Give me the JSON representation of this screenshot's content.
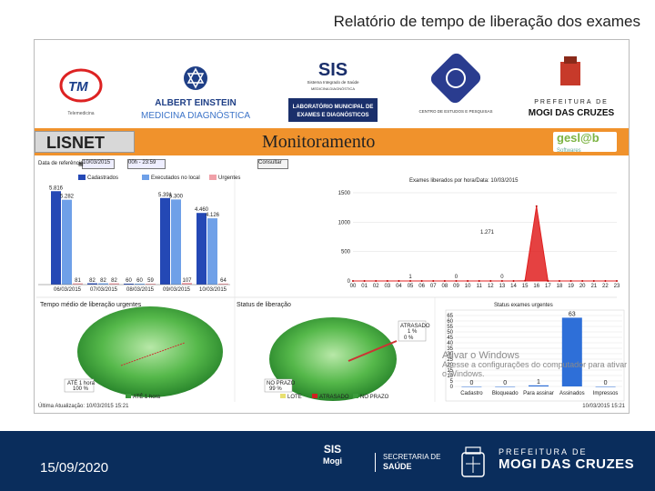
{
  "slide": {
    "title": "Relatório de tempo de liberação dos exames",
    "date": "15/09/2020"
  },
  "logos": {
    "tm_caption": "Telemedicina",
    "einstein_line1": "ALBERT EINSTEIN",
    "einstein_line2": "MEDICINA DIAGNÓSTICA",
    "sis_name": "SIS",
    "sis_sub": "Sistema Integrado de Saúde",
    "sis_sub2": "MEDICINA DIAGNÓSTICA",
    "lab_box_line1": "LABORATÓRIO MUNICIPAL DE",
    "lab_box_line2": "EXAMES E DIAGNÓSTICOS",
    "center_caption": "CENTRO DE ESTUDOS E PESQUISAS",
    "pref_line1": "PREFEITURA DE",
    "pref_line2": "MOGI DAS CRUZES"
  },
  "banner": {
    "app_name": "LISNET",
    "title": "Monitoramento",
    "gesl_brand": "gesl@b",
    "gesl_sub": "Softwares"
  },
  "toolbar": {
    "date_label": "Data de referência",
    "date_value": "10/03/2015",
    "range_value": "00h - 23:59",
    "button": "Consultar"
  },
  "charts": {
    "bar_legend": [
      "Cadastrados",
      "Executados no local",
      "Urgentes"
    ],
    "line_title": "Exames liberados por hora/Data: 10/03/2015",
    "tempo_title": "Tempo médio de liberação urgentes",
    "status_title": "Status de liberação",
    "urgentes_title": "Status exames urgentes",
    "pie1_label": "ATÉ 1 hora\n100 %",
    "pie1_legend": "ATÉ 1 hora",
    "pie2_label": "NO PRAZO\n99 %",
    "pie2_callout": "ATRASADO\n1 %",
    "pie2_callout2": "0 %",
    "pie2_legend": [
      "LOTE",
      "ATRASADO",
      "NO PRAZO"
    ]
  },
  "chart_data": [
    {
      "type": "bar",
      "categories": [
        "06/03/2015",
        "07/03/2015",
        "08/03/2015",
        "09/03/2015",
        "10/03/2015"
      ],
      "series": [
        {
          "name": "Cadastrados",
          "values": [
            5816,
            82,
            60,
            5391,
            4460
          ]
        },
        {
          "name": "Executados no local",
          "values": [
            5282,
            82,
            60,
            5300,
            4126
          ]
        },
        {
          "name": "Urgentes",
          "values": [
            81,
            82,
            59,
            107,
            64
          ]
        }
      ],
      "bar_labels": [
        [
          "5.816",
          "5.282",
          "81"
        ],
        [
          "82",
          "82",
          "82"
        ],
        [
          "60",
          "60",
          "59"
        ],
        [
          "5.391",
          "5.300",
          "107"
        ],
        [
          "4.460",
          "4.126",
          "64"
        ]
      ]
    },
    {
      "type": "area",
      "title": "Exames liberados por hora/Data: 10/03/2015",
      "x": [
        "00",
        "01",
        "02",
        "03",
        "04",
        "05",
        "06",
        "07",
        "08",
        "09",
        "10",
        "11",
        "12",
        "13",
        "14",
        "15",
        "16",
        "17",
        "18",
        "19",
        "20",
        "21",
        "22",
        "23"
      ],
      "y": [
        0,
        0,
        0,
        0,
        0,
        0,
        0,
        0,
        0,
        0,
        0,
        0,
        0,
        0,
        0,
        4,
        1271,
        0,
        0,
        0,
        0,
        0,
        0,
        0
      ],
      "annotations": [
        "1.271",
        "1",
        "0",
        "0"
      ],
      "yticks": [
        "0",
        "500",
        "1000",
        "1500"
      ],
      "color": "#e02020"
    },
    {
      "type": "pie",
      "title": "Tempo médio de liberação urgentes",
      "labels": [
        "ATÉ 1 hora"
      ],
      "values": [
        100
      ]
    },
    {
      "type": "pie",
      "title": "Status de liberação",
      "labels": [
        "NO PRAZO",
        "ATRASADO",
        "LOTE"
      ],
      "values": [
        99,
        1,
        0
      ]
    },
    {
      "type": "bar",
      "title": "Status exames urgentes",
      "categories": [
        "Cadastro",
        "Bloqueado",
        "Para assinar",
        "Assinados",
        "Impressos"
      ],
      "values": [
        0,
        0,
        1,
        63,
        0
      ],
      "yticks": [
        "0",
        "5",
        "10",
        "15",
        "20",
        "25",
        "30",
        "35",
        "40",
        "45",
        "50",
        "55",
        "60",
        "65"
      ],
      "color": "#2e6fd8"
    }
  ],
  "footer": {
    "last_update": "Última Atualização: 10/03/2015 15:21",
    "right_stamp": "10/03/2015 15:21"
  },
  "watermark": {
    "title": "Ativar o Windows",
    "body": "Acesse a configurações do computador para ativar o Windows."
  },
  "bottom": {
    "sis": "SIS",
    "sis_sub": "Mogi",
    "sec_line1": "SECRETARIA DE",
    "sec_line2": "SAÚDE",
    "pref_line1": "PREFEITURA DE",
    "pref_line2": "MOGI DAS CRUZES"
  }
}
